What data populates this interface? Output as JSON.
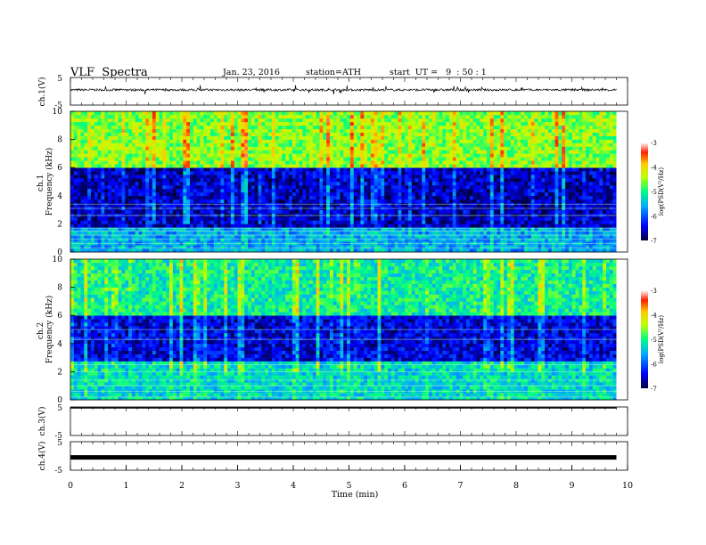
{
  "header": {
    "title": "VLF  Spectra",
    "date": "Jan. 23, 2016",
    "station": "station=ATH",
    "start": "start  UT =   9  : 50 : 1"
  },
  "chart_data": [
    {
      "type": "line",
      "panel": "ch1-waveform",
      "ylabel": "ch.1(V)",
      "ylim": [
        -5,
        5
      ],
      "yticks": [
        "5",
        "-5"
      ],
      "xlim": [
        0,
        10
      ],
      "baseline_v": 0.5,
      "noise_amp_v": 0.4
    },
    {
      "type": "heatmap",
      "panel": "ch1-spectrogram",
      "ylabel": "ch.1\nFrequency  (kHz)",
      "ylim": [
        0,
        10
      ],
      "yticks": [
        "0",
        "2",
        "4",
        "6",
        "8",
        "10"
      ],
      "xlim": [
        0,
        9.8
      ],
      "colorbar": {
        "label": "log(PSD(V²/Hz)",
        "range": [
          -7,
          -3
        ],
        "ticks": [
          "-3",
          "-4",
          "-5",
          "-6",
          "-7"
        ]
      },
      "bands_khz": [
        [
          0,
          1.8,
          -5.6
        ],
        [
          1.8,
          6.0,
          -6.6
        ],
        [
          6.0,
          10,
          -4.6
        ]
      ],
      "lines_khz": [
        0.3,
        0.6,
        0.9,
        1.2,
        1.5,
        1.7,
        2.6,
        3.1,
        3.4
      ]
    },
    {
      "type": "heatmap",
      "panel": "ch2-spectrogram",
      "ylabel": "ch.2\nFrequency  (kHz)",
      "ylim": [
        0,
        10
      ],
      "yticks": [
        "0",
        "2",
        "4",
        "6",
        "8",
        "10"
      ],
      "xlim": [
        0,
        9.8
      ],
      "colorbar": {
        "label": "log(PSD(V²/Hz)",
        "range": [
          -7,
          -3
        ],
        "ticks": [
          "-3",
          "-4",
          "-5",
          "-6",
          "-7"
        ]
      },
      "bands_khz": [
        [
          0,
          2.8,
          -5.3
        ],
        [
          2.8,
          6.0,
          -6.5
        ],
        [
          6.0,
          10,
          -5.1
        ]
      ],
      "lines_khz": [
        0.2,
        0.6,
        1.0,
        1.4,
        2.0,
        2.5,
        4.3,
        5.0
      ]
    },
    {
      "type": "line",
      "panel": "ch3-waveform",
      "ylabel": "ch.3(V)",
      "ylim": [
        -5,
        5
      ],
      "yticks": [
        "5",
        "-5"
      ],
      "xlim": [
        0,
        10
      ],
      "baseline_v": 5
    },
    {
      "type": "line",
      "panel": "ch4-waveform",
      "ylabel": "ch.4(V)",
      "ylim": [
        -5,
        5
      ],
      "yticks": [
        "5",
        "-5"
      ],
      "xlim": [
        0,
        10
      ],
      "baseline_v": -0.5,
      "xlabel": "Time  (min)",
      "xticks": [
        "0",
        "1",
        "2",
        "3",
        "4",
        "5",
        "6",
        "7",
        "8",
        "9",
        "10"
      ]
    }
  ]
}
